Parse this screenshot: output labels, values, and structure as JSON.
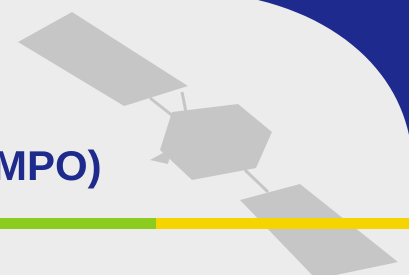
{
  "title": "MPO)"
}
